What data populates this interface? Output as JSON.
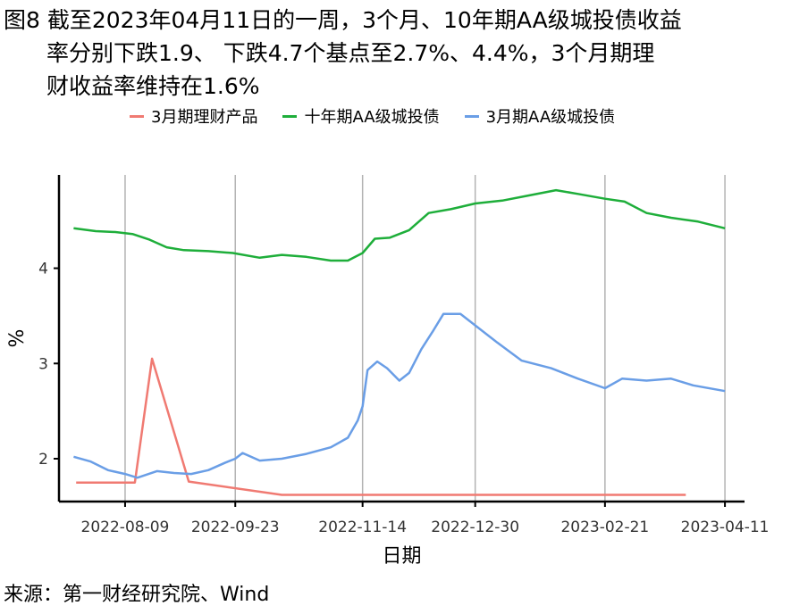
{
  "header": {
    "line1": "图8  截至2023年04月11日的一周，3个月、10年期AA级城投债收益",
    "line2": "率分别下跌1.9、 下跌4.7个基点至2.7%、4.4%，3个月期理",
    "line3": "财收益率维持在1.6%"
  },
  "source": "来源：第一财经研究院、Wind",
  "chart_data": {
    "type": "line",
    "title": "",
    "xlabel": "日期",
    "ylabel": "%",
    "ylim": [
      1.55,
      4.98
    ],
    "xlim": [
      "2022-07-13",
      "2023-04-19"
    ],
    "x_ticks": [
      "2022-08-09",
      "2022-09-23",
      "2022-11-14",
      "2022-12-30",
      "2023-02-21",
      "2023-04-11"
    ],
    "y_ticks": [
      2,
      3,
      4
    ],
    "grid": "vertical-major",
    "legend_position": "top",
    "series": [
      {
        "name": "3月期理财产品",
        "color": "#F07A72",
        "points": [
          [
            "2022-07-20",
            1.75
          ],
          [
            "2022-08-13",
            1.75
          ],
          [
            "2022-08-20",
            3.05
          ],
          [
            "2022-09-04",
            1.76
          ],
          [
            "2022-10-12",
            1.62
          ],
          [
            "2023-03-26",
            1.62
          ]
        ]
      },
      {
        "name": "十年期AA级城投债",
        "color": "#1EAE3A",
        "points": [
          [
            "2022-07-19",
            4.42
          ],
          [
            "2022-07-28",
            4.39
          ],
          [
            "2022-08-05",
            4.38
          ],
          [
            "2022-08-12",
            4.36
          ],
          [
            "2022-08-19",
            4.3
          ],
          [
            "2022-08-26",
            4.22
          ],
          [
            "2022-09-02",
            4.19
          ],
          [
            "2022-09-12",
            4.18
          ],
          [
            "2022-09-22",
            4.16
          ],
          [
            "2022-10-03",
            4.11
          ],
          [
            "2022-10-12",
            4.14
          ],
          [
            "2022-10-22",
            4.12
          ],
          [
            "2022-11-01",
            4.08
          ],
          [
            "2022-11-08",
            4.08
          ],
          [
            "2022-11-14",
            4.16
          ],
          [
            "2022-11-19",
            4.31
          ],
          [
            "2022-11-25",
            4.32
          ],
          [
            "2022-12-03",
            4.4
          ],
          [
            "2022-12-11",
            4.58
          ],
          [
            "2022-12-20",
            4.62
          ],
          [
            "2022-12-30",
            4.68
          ],
          [
            "2023-01-10",
            4.71
          ],
          [
            "2023-01-20",
            4.76
          ],
          [
            "2023-02-01",
            4.82
          ],
          [
            "2023-02-10",
            4.78
          ],
          [
            "2023-02-21",
            4.73
          ],
          [
            "2023-03-01",
            4.7
          ],
          [
            "2023-03-10",
            4.58
          ],
          [
            "2023-03-20",
            4.53
          ],
          [
            "2023-03-31",
            4.49
          ],
          [
            "2023-04-11",
            4.42
          ]
        ]
      },
      {
        "name": "3月期AA级城投债",
        "color": "#6A9EE6",
        "points": [
          [
            "2022-07-19",
            2.02
          ],
          [
            "2022-07-26",
            1.97
          ],
          [
            "2022-08-02",
            1.88
          ],
          [
            "2022-08-09",
            1.84
          ],
          [
            "2022-08-14",
            1.8
          ],
          [
            "2022-08-22",
            1.87
          ],
          [
            "2022-08-29",
            1.85
          ],
          [
            "2022-09-05",
            1.84
          ],
          [
            "2022-09-12",
            1.88
          ],
          [
            "2022-09-19",
            1.96
          ],
          [
            "2022-09-23",
            2.0
          ],
          [
            "2022-09-26",
            2.06
          ],
          [
            "2022-10-03",
            1.98
          ],
          [
            "2022-10-12",
            2.0
          ],
          [
            "2022-10-22",
            2.05
          ],
          [
            "2022-11-01",
            2.12
          ],
          [
            "2022-11-08",
            2.22
          ],
          [
            "2022-11-12",
            2.4
          ],
          [
            "2022-11-14",
            2.55
          ],
          [
            "2022-11-16",
            2.93
          ],
          [
            "2022-11-20",
            3.02
          ],
          [
            "2022-11-24",
            2.95
          ],
          [
            "2022-11-29",
            2.82
          ],
          [
            "2022-12-03",
            2.9
          ],
          [
            "2022-12-08",
            3.15
          ],
          [
            "2022-12-13",
            3.35
          ],
          [
            "2022-12-17",
            3.52
          ],
          [
            "2022-12-24",
            3.52
          ],
          [
            "2022-12-30",
            3.4
          ],
          [
            "2023-01-08",
            3.22
          ],
          [
            "2023-01-18",
            3.03
          ],
          [
            "2023-01-30",
            2.95
          ],
          [
            "2023-02-10",
            2.84
          ],
          [
            "2023-02-21",
            2.74
          ],
          [
            "2023-02-28",
            2.84
          ],
          [
            "2023-03-10",
            2.82
          ],
          [
            "2023-03-20",
            2.84
          ],
          [
            "2023-03-29",
            2.77
          ],
          [
            "2023-04-11",
            2.71
          ]
        ]
      }
    ]
  }
}
